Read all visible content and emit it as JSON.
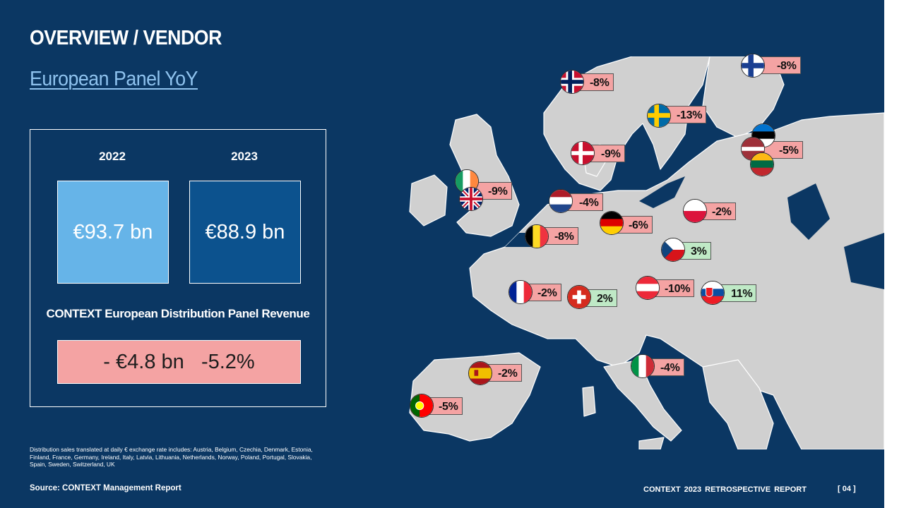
{
  "header": {
    "title": "OVERVIEW / VENDOR",
    "subtitle": "European Panel YoY"
  },
  "panel": {
    "year_2022": "2022",
    "year_2023": "2023",
    "value_2022": "€93.7 bn",
    "value_2023": "€88.9 bn",
    "caption": "CONTEXT European Distribution Panel Revenue",
    "delta": "- €4.8 bn   -5.2%"
  },
  "footnote": "Distribution sales translated at daily € exchange rate includes: Austria, Belgium, Czechia, Denmark, Estonia, Finland, France, Germany, Ireland, Italy, Latvia, Lithuania, Netherlands, Norway, Poland, Portugal, Slovakia, Spain, Sweden, Switzerland, UK",
  "footer": {
    "source": "Source: CONTEXT  Management Report",
    "report": "CONTEXT  2023 RETROSPECTIVE  REPORT",
    "page": "[ 04 ]"
  },
  "colors": {
    "background": "#0b3763",
    "negative": "#f4a3a3",
    "positive": "#bfe9c6",
    "box_2022": "#66b4e8",
    "box_2023": "#0c528e"
  },
  "map": {
    "badges": {
      "finland": "-8%",
      "norway": "-8%",
      "sweden": "-13%",
      "baltics": "-5%",
      "denmark": "-9%",
      "uk_ireland": "-9%",
      "netherlands": "-4%",
      "poland": "-2%",
      "germany": "-6%",
      "belgium": "-8%",
      "czechia": "3%",
      "france": "-2%",
      "switzerland": "2%",
      "austria": "-10%",
      "slovakia": "11%",
      "spain": "-2%",
      "italy": "-4%",
      "portugal": "-5%"
    }
  }
}
